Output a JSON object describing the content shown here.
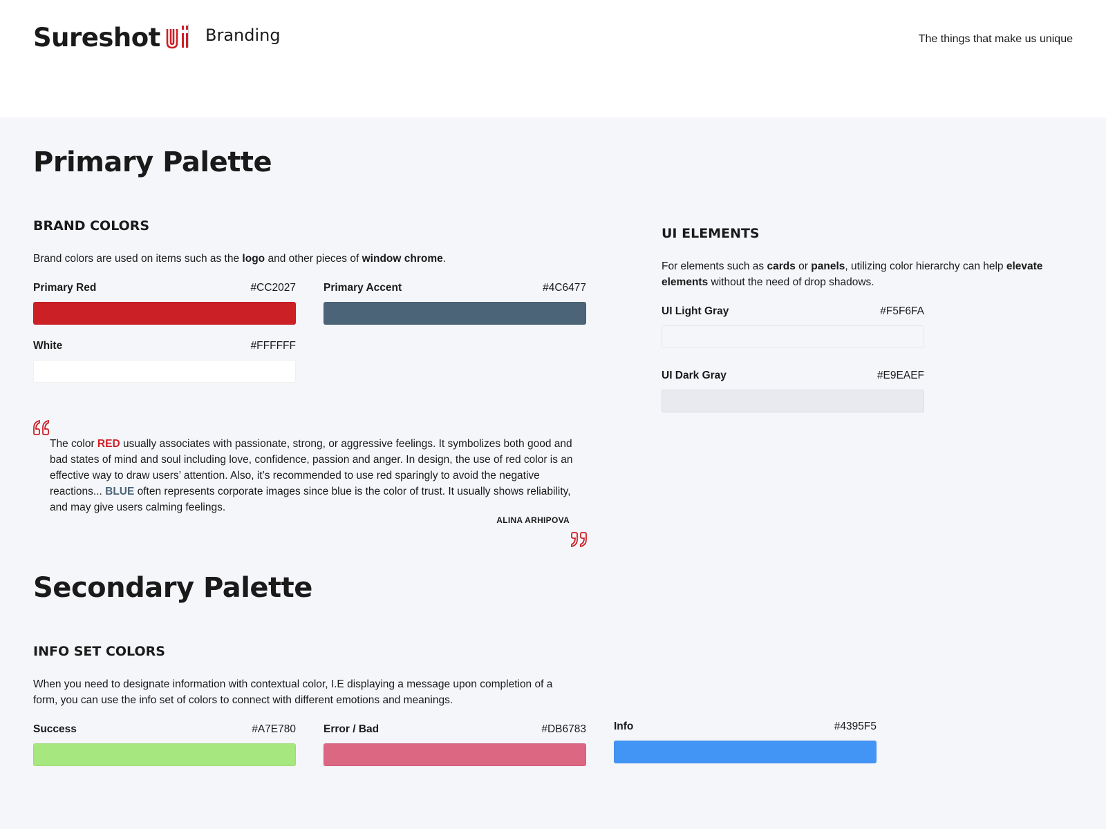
{
  "header": {
    "logo_text": "Sureshot",
    "logo_mark_icon": "ui-mark-icon",
    "title": "Branding",
    "tagline": "The things that make us unique"
  },
  "primary": {
    "title": "Primary Palette",
    "brand": {
      "heading": "BRAND COLORS",
      "desc_parts": [
        "Brand colors are used on items such as the ",
        "logo",
        " and other pieces of ",
        "window chrome",
        "."
      ],
      "swatches": [
        {
          "name": "Primary Red",
          "hex": "#CC2027"
        },
        {
          "name": "Primary Accent",
          "hex": "#4C6477"
        },
        {
          "name": "White",
          "hex": "#FFFFFF"
        }
      ]
    },
    "ui": {
      "heading": "UI ELEMENTS",
      "desc_parts": [
        "For elements such as ",
        "cards",
        " or ",
        "panels",
        ", utilizing color hierarchy can help ",
        "elevate elements",
        " without the need of drop shadows."
      ],
      "swatches": [
        {
          "name": "UI Light Gray",
          "hex": "#F5F6FA"
        },
        {
          "name": "UI Dark Gray",
          "hex": "#E9EAEF"
        }
      ]
    },
    "quote": {
      "parts": [
        "The color ",
        "RED",
        " usually associates with passionate, strong, or aggressive feelings. It symbolizes both good and bad states of mind and soul including love, confidence, passion and anger. In design, the use of red color is an effective way to draw users’ attention. Also, it’s recommended to use red sparingly to avoid the negative reactions... ",
        "BLUE",
        " often represents corporate images since blue is the color of trust. It usually shows reliability, and may give users calming feelings."
      ],
      "author": "ALINA ARHIPOVA",
      "accent_color": "#CC2027"
    }
  },
  "secondary": {
    "title": "Secondary Palette",
    "info": {
      "heading": "INFO SET COLORS",
      "desc": "When you need to designate information with contextual color, I.E displaying a message upon completion of a form, you can use the info set of colors to connect with different emotions and meanings.",
      "swatches": [
        {
          "name": "Success",
          "hex": "#A7E780"
        },
        {
          "name": "Error / Bad",
          "hex": "#DB6783"
        },
        {
          "name": "Info",
          "hex": "#4395F5"
        }
      ]
    }
  }
}
